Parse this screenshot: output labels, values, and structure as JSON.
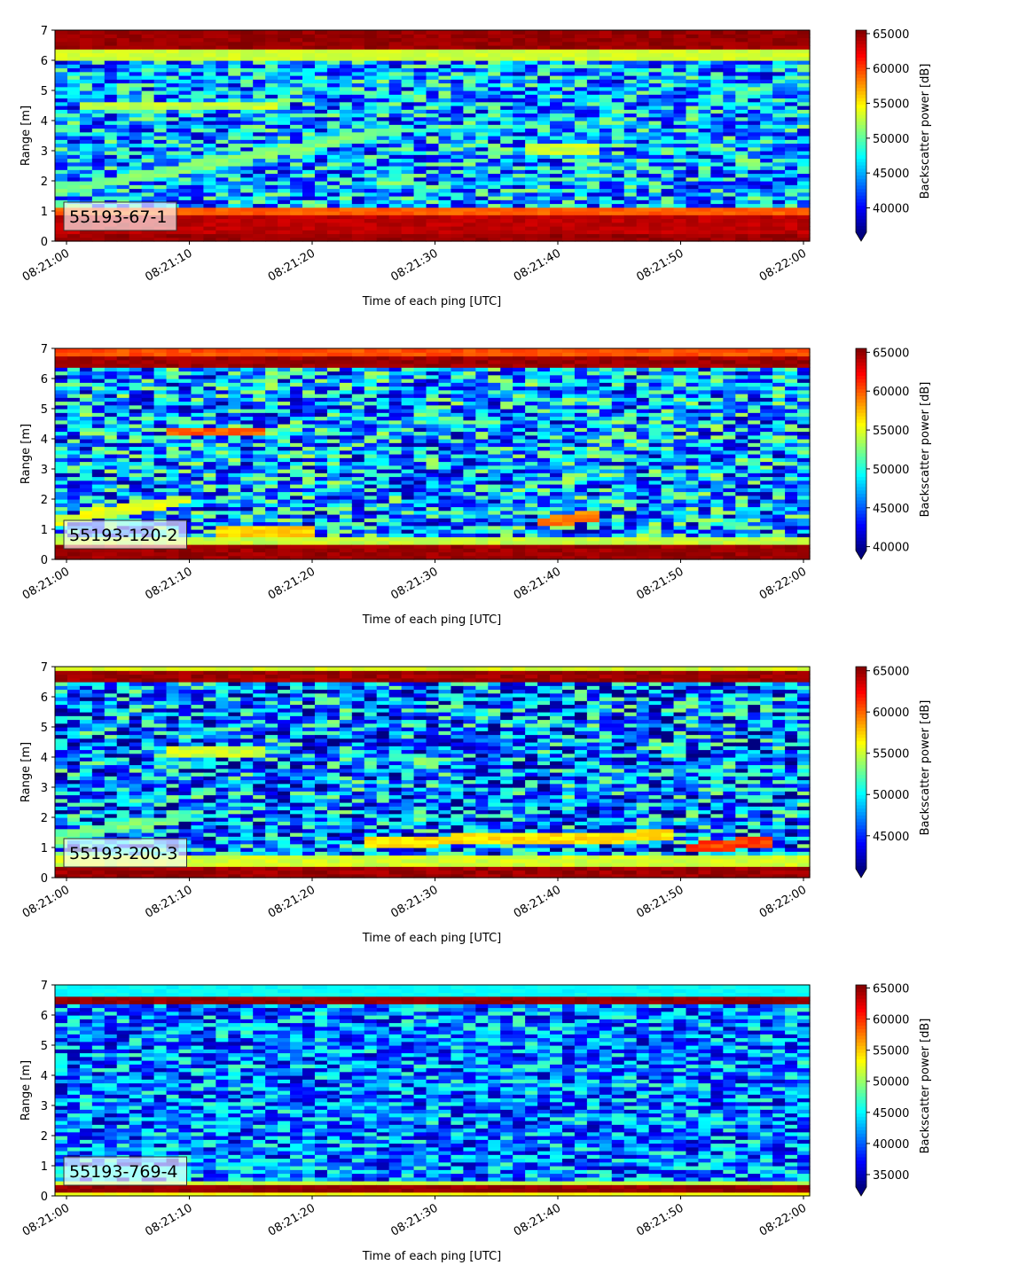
{
  "chart_data": [
    {
      "type": "heatmap",
      "label": "55193-67-1",
      "xlabel": "Time of each ping [UTC]",
      "ylabel": "Range [m]",
      "xlim": [
        "08:21:00",
        "08:22:00"
      ],
      "ylim": [
        0,
        7
      ],
      "xticks": [
        "08:21:00",
        "08:21:10",
        "08:21:20",
        "08:21:30",
        "08:21:40",
        "08:21:50",
        "08:22:00"
      ],
      "yticks": [
        0,
        1,
        2,
        3,
        4,
        5,
        6,
        7
      ],
      "colorbar": {
        "label": "Backscatter power [dB]",
        "min": 36500,
        "max": 65500,
        "ticks": [
          40000,
          45000,
          50000,
          55000,
          60000,
          65000
        ],
        "colormap": "jet",
        "extend": "min"
      },
      "background": 45000,
      "bands": [
        {
          "y0": 0.0,
          "y1": 0.25,
          "value": 65500
        },
        {
          "y0": 0.25,
          "y1": 0.85,
          "value": 64500
        },
        {
          "y0": 0.85,
          "y1": 1.15,
          "value": 60000
        },
        {
          "y0": 6.4,
          "y1": 7.0,
          "value": 65500
        },
        {
          "y0": 6.0,
          "y1": 6.4,
          "value": 54000
        }
      ],
      "features": [
        {
          "t0": 0,
          "t1": 27,
          "r0": 1.7,
          "r1": 3.7,
          "value": 52000
        },
        {
          "t0": 2,
          "t1": 17,
          "r0": 4.5,
          "r1": 4.5,
          "value": 54000
        },
        {
          "t0": 38,
          "t1": 43,
          "r0": 3.1,
          "r1": 3.1,
          "value": 54000
        }
      ]
    },
    {
      "type": "heatmap",
      "label": "55193-120-2",
      "xlabel": "Time of each ping [UTC]",
      "ylabel": "Range [m]",
      "xlim": [
        "08:21:00",
        "08:22:00"
      ],
      "ylim": [
        0,
        7
      ],
      "xticks": [
        "08:21:00",
        "08:21:10",
        "08:21:20",
        "08:21:30",
        "08:21:40",
        "08:21:50",
        "08:22:00"
      ],
      "yticks": [
        0,
        1,
        2,
        3,
        4,
        5,
        6,
        7
      ],
      "colorbar": {
        "label": "Backscatter power [dB]",
        "min": 39500,
        "max": 65500,
        "ticks": [
          40000,
          45000,
          50000,
          55000,
          60000,
          65000
        ],
        "colormap": "jet",
        "extend": "min"
      },
      "background": 47000,
      "bands": [
        {
          "y0": 0.0,
          "y1": 0.45,
          "value": 65500
        },
        {
          "y0": 0.45,
          "y1": 0.8,
          "value": 55000
        },
        {
          "y0": 6.35,
          "y1": 6.75,
          "value": 65500
        },
        {
          "y0": 6.75,
          "y1": 7.0,
          "value": 61000
        }
      ],
      "features": [
        {
          "t0": 9,
          "t1": 16,
          "r0": 4.25,
          "r1": 4.25,
          "value": 61000
        },
        {
          "t0": 0,
          "t1": 10,
          "r0": 1.3,
          "r1": 2.0,
          "value": 56000
        },
        {
          "t0": 13,
          "t1": 20,
          "r0": 0.95,
          "r1": 0.95,
          "value": 58000
        },
        {
          "t0": 39,
          "t1": 43,
          "r0": 1.25,
          "r1": 1.45,
          "value": 60000
        }
      ]
    },
    {
      "type": "heatmap",
      "label": "55193-200-3",
      "xlabel": "Time of each ping [UTC]",
      "ylabel": "Range [m]",
      "xlim": [
        "08:21:00",
        "08:22:00"
      ],
      "ylim": [
        0,
        7
      ],
      "xticks": [
        "08:21:00",
        "08:21:10",
        "08:21:20",
        "08:21:30",
        "08:21:40",
        "08:21:50",
        "08:22:00"
      ],
      "yticks": [
        0,
        1,
        2,
        3,
        4,
        5,
        6,
        7
      ],
      "colorbar": {
        "label": "Backscatter power [dB]",
        "min": 41000,
        "max": 65500,
        "ticks": [
          45000,
          50000,
          55000,
          60000,
          65000
        ],
        "colormap": "jet",
        "extend": "min"
      },
      "background": 47000,
      "bands": [
        {
          "y0": 0.0,
          "y1": 0.35,
          "value": 65500
        },
        {
          "y0": 0.35,
          "y1": 0.7,
          "value": 56000
        },
        {
          "y0": 6.5,
          "y1": 6.85,
          "value": 65500
        },
        {
          "y0": 6.85,
          "y1": 7.0,
          "value": 56000
        }
      ],
      "features": [
        {
          "t0": 0,
          "t1": 10,
          "r0": 1.4,
          "r1": 2.0,
          "value": 54000
        },
        {
          "t0": 9,
          "t1": 16,
          "r0": 4.2,
          "r1": 4.2,
          "value": 56000
        },
        {
          "t0": 25,
          "t1": 49,
          "r0": 1.2,
          "r1": 1.4,
          "value": 58000
        },
        {
          "t0": 51,
          "t1": 57,
          "r0": 1.0,
          "r1": 1.2,
          "value": 62000
        }
      ]
    },
    {
      "type": "heatmap",
      "label": "55193-769-4",
      "xlabel": "Time of each ping [UTC]",
      "ylabel": "Range [m]",
      "xlim": [
        "08:21:00",
        "08:22:00"
      ],
      "ylim": [
        0,
        7
      ],
      "xticks": [
        "08:21:00",
        "08:21:10",
        "08:21:20",
        "08:21:30",
        "08:21:40",
        "08:21:50",
        "08:22:00"
      ],
      "yticks": [
        0,
        1,
        2,
        3,
        4,
        5,
        6,
        7
      ],
      "colorbar": {
        "label": "Backscatter power [dB]",
        "min": 33000,
        "max": 65500,
        "ticks": [
          35000,
          40000,
          45000,
          50000,
          55000,
          60000,
          65000
        ],
        "colormap": "jet",
        "extend": "min"
      },
      "background": 41000,
      "bands": [
        {
          "y0": 0.0,
          "y1": 0.15,
          "value": 54000
        },
        {
          "y0": 0.15,
          "y1": 0.35,
          "value": 65500
        },
        {
          "y0": 0.35,
          "y1": 0.55,
          "value": 52000
        },
        {
          "y0": 6.4,
          "y1": 6.6,
          "value": 65500
        },
        {
          "y0": 6.6,
          "y1": 7.0,
          "value": 46000
        }
      ],
      "features": [
        {
          "t0": 0,
          "t1": 10,
          "r0": 0.8,
          "r1": 0.8,
          "value": 47000
        }
      ]
    }
  ]
}
